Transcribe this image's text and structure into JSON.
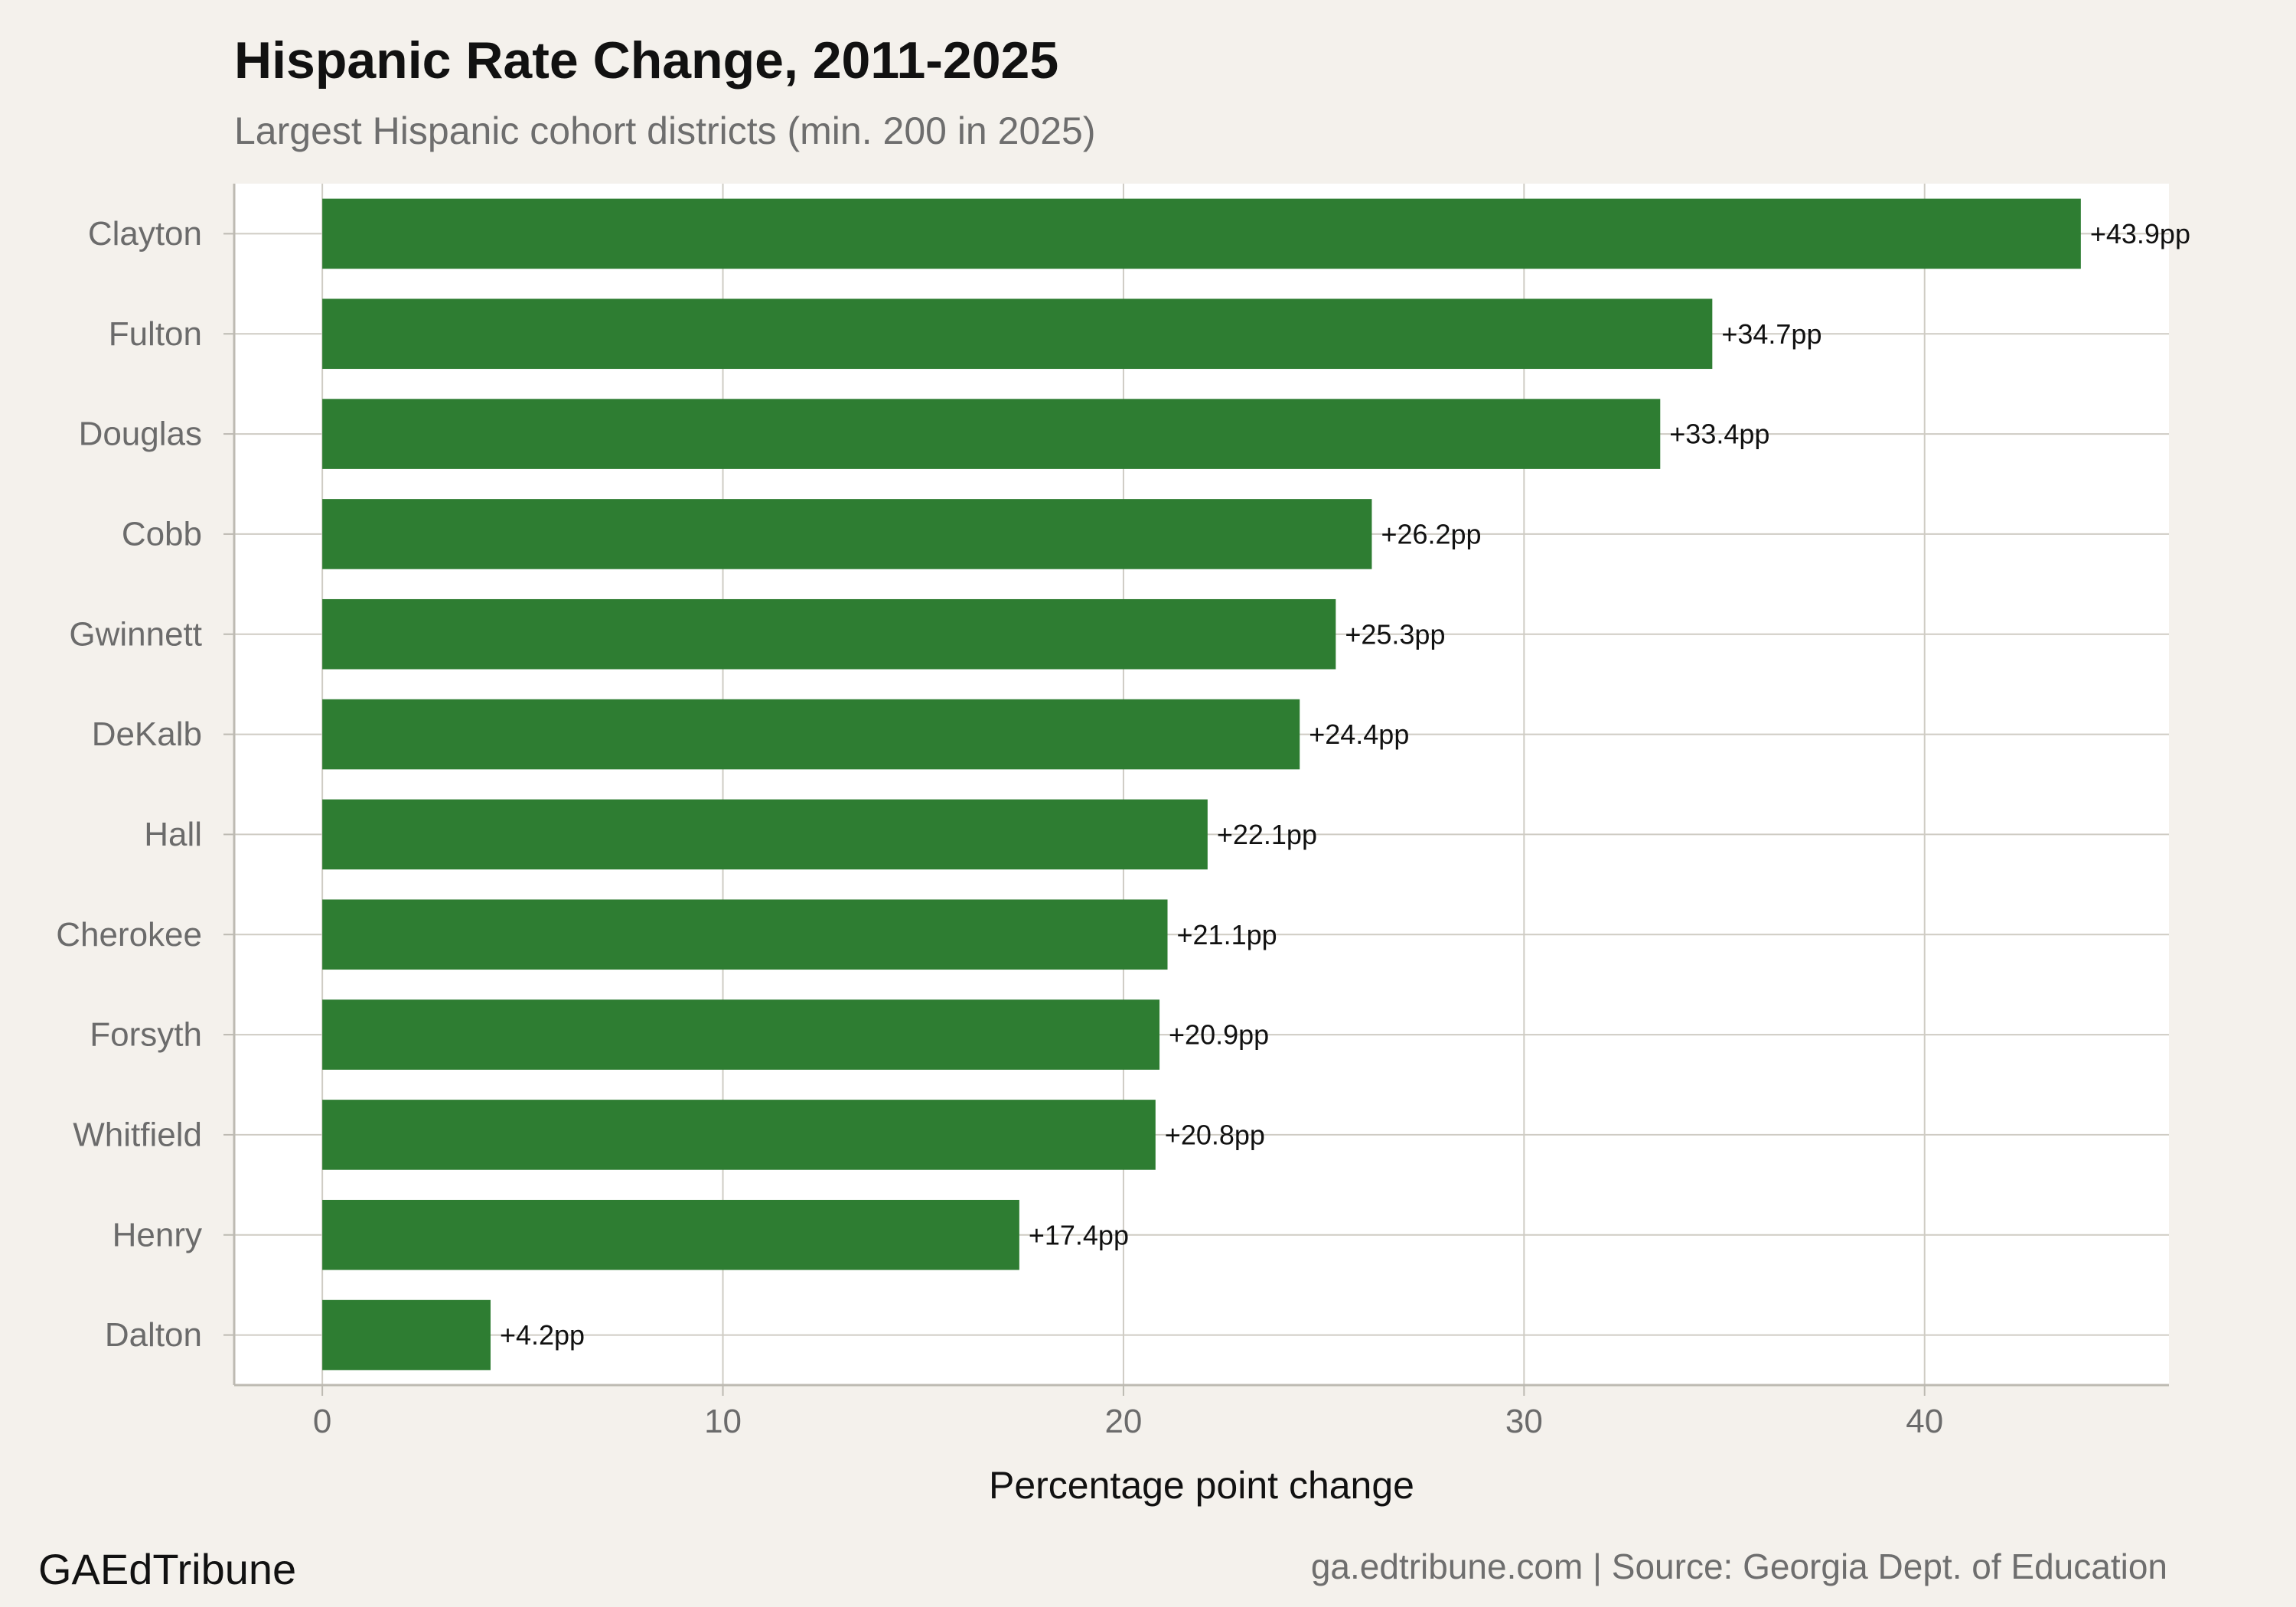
{
  "header": {
    "title": "Hispanic Rate Change, 2011-2025",
    "subtitle": "Largest Hispanic cohort districts (min. 200 in 2025)"
  },
  "footer": {
    "brand": "GAEdTribune",
    "source": "ga.edtribune.com | Source: Georgia Dept. of Education"
  },
  "colors": {
    "bar": "#2e7d32",
    "panel": "#ffffff",
    "page_background": "#f4f1ec",
    "grid": "#cfccc4"
  },
  "chart_data": {
    "type": "bar",
    "orientation": "horizontal",
    "categories": [
      "Clayton",
      "Fulton",
      "Douglas",
      "Cobb",
      "Gwinnett",
      "DeKalb",
      "Hall",
      "Cherokee",
      "Forsyth",
      "Whitfield",
      "Henry",
      "Dalton"
    ],
    "values": [
      43.9,
      34.7,
      33.4,
      26.2,
      25.3,
      24.4,
      22.1,
      21.1,
      20.9,
      20.8,
      17.4,
      4.2
    ],
    "data_labels": [
      "+43.9pp",
      "+34.7pp",
      "+33.4pp",
      "+26.2pp",
      "+25.3pp",
      "+24.4pp",
      "+22.1pp",
      "+21.1pp",
      "+20.9pp",
      "+20.8pp",
      "+17.4pp",
      "+4.2pp"
    ],
    "xlabel": "Percentage point change",
    "ylabel": "",
    "xlim": [
      -2.2,
      46.1
    ],
    "xticks": [
      0,
      10,
      20,
      30,
      40
    ],
    "grid": true,
    "legend": "none"
  }
}
